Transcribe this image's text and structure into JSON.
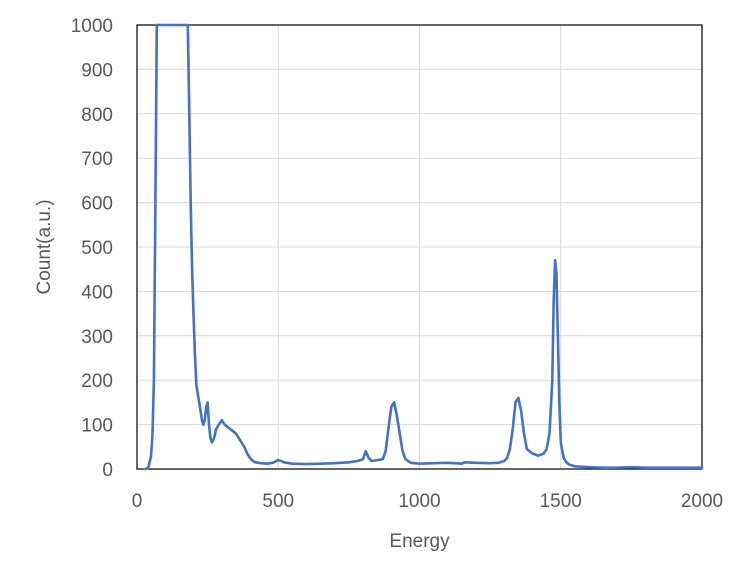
{
  "chart_data": {
    "type": "line",
    "title": "",
    "xlabel": "Energy",
    "ylabel": "Count(a.u.)",
    "xlim": [
      0,
      2000
    ],
    "ylim": [
      0,
      1000
    ],
    "xticks": [
      0,
      500,
      1000,
      1500,
      2000
    ],
    "yticks": [
      0,
      100,
      200,
      300,
      400,
      500,
      600,
      700,
      800,
      900,
      1000
    ],
    "xtick_labels": [
      "0",
      "500",
      "1000",
      "1500",
      "2000"
    ],
    "ytick_labels": [
      "0",
      "100",
      "200",
      "300",
      "400",
      "500",
      "600",
      "700",
      "800",
      "900",
      "1000"
    ],
    "grid": true,
    "legend": "none",
    "colors": {
      "series": "#4472c4",
      "grid": "#d9d9d9",
      "frame": "#000000",
      "text": "#595959"
    },
    "series": [
      {
        "x": [
          30,
          40,
          50,
          55,
          60,
          65,
          70,
          180,
          185,
          190,
          195,
          200,
          205,
          210,
          215,
          220,
          225,
          230,
          235,
          240,
          245,
          250,
          255,
          260,
          265,
          270,
          275,
          280,
          290,
          300,
          310,
          320,
          330,
          340,
          350,
          360,
          370,
          380,
          390,
          400,
          410,
          420,
          440,
          460,
          480,
          500,
          510,
          520,
          550,
          600,
          650,
          700,
          750,
          780,
          800,
          810,
          820,
          830,
          850,
          870,
          880,
          890,
          900,
          910,
          920,
          930,
          940,
          950,
          960,
          970,
          1000,
          1050,
          1100,
          1150,
          1160,
          1200,
          1250,
          1280,
          1300,
          1310,
          1320,
          1330,
          1340,
          1350,
          1360,
          1370,
          1380,
          1400,
          1420,
          1440,
          1450,
          1460,
          1470,
          1475,
          1480,
          1485,
          1490,
          1495,
          1500,
          1510,
          1520,
          1530,
          1550,
          1600,
          1650,
          1700,
          1750,
          1800,
          1850,
          1900,
          1950,
          2000
        ],
        "values": [
          0,
          3,
          30,
          80,
          200,
          600,
          1000,
          1000,
          800,
          600,
          450,
          350,
          260,
          190,
          170,
          150,
          130,
          110,
          100,
          110,
          140,
          150,
          100,
          70,
          60,
          65,
          75,
          90,
          100,
          110,
          100,
          95,
          90,
          85,
          80,
          70,
          60,
          50,
          35,
          25,
          18,
          15,
          13,
          12,
          14,
          20,
          18,
          15,
          12,
          11,
          12,
          13,
          15,
          18,
          22,
          40,
          25,
          18,
          20,
          22,
          40,
          90,
          140,
          150,
          120,
          80,
          40,
          22,
          18,
          14,
          12,
          13,
          14,
          12,
          15,
          14,
          13,
          14,
          18,
          25,
          45,
          90,
          150,
          160,
          130,
          80,
          45,
          35,
          30,
          35,
          45,
          80,
          200,
          380,
          470,
          440,
          300,
          150,
          60,
          25,
          15,
          10,
          6,
          4,
          3,
          3,
          4,
          3,
          3,
          3,
          3,
          3
        ]
      }
    ]
  }
}
